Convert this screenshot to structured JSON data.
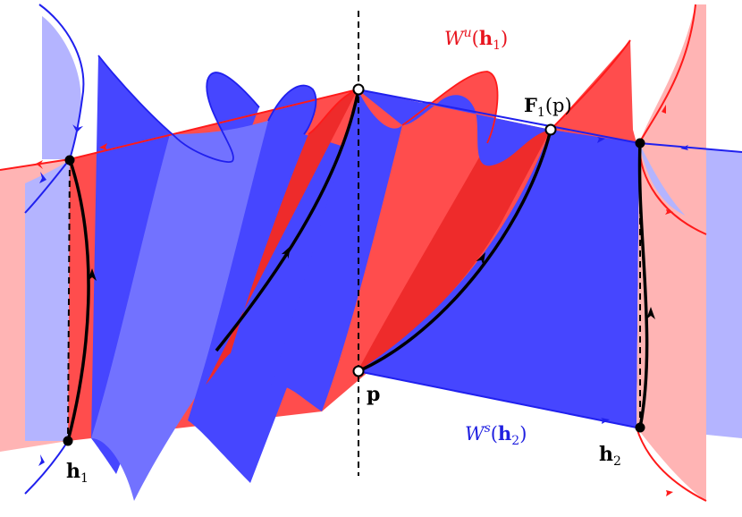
{
  "labels": {
    "wu": {
      "base": "W",
      "sup": "u",
      "open": "(",
      "arg": "h",
      "sub": "1",
      "close": ")"
    },
    "ws": {
      "base": "W",
      "sup": "s",
      "open": "(",
      "arg": "h",
      "sub": "2",
      "close": ")"
    },
    "f1p": {
      "base": "F",
      "sub": "1",
      "arg": "(p)"
    },
    "p": "p",
    "h1": {
      "arg": "h",
      "sub": "1"
    },
    "h2": {
      "arg": "h",
      "sub": "2"
    }
  },
  "colors": {
    "unstable_fill": "#ff4d4d",
    "unstable_fill_dark": "#ee2b2b",
    "unstable_light": "#ffb4b4",
    "unstable_line": "#ff1a1a",
    "stable_fill": "#4646ff",
    "stable_fill_mid": "#7272ff",
    "stable_light": "#b4b4ff",
    "stable_line": "#2020ee",
    "orbit": "#000000"
  },
  "icons": {
    "flow_arrow": "arrowhead-icon",
    "fixed_point": "filled-dot-icon",
    "section_point": "open-dot-icon"
  }
}
